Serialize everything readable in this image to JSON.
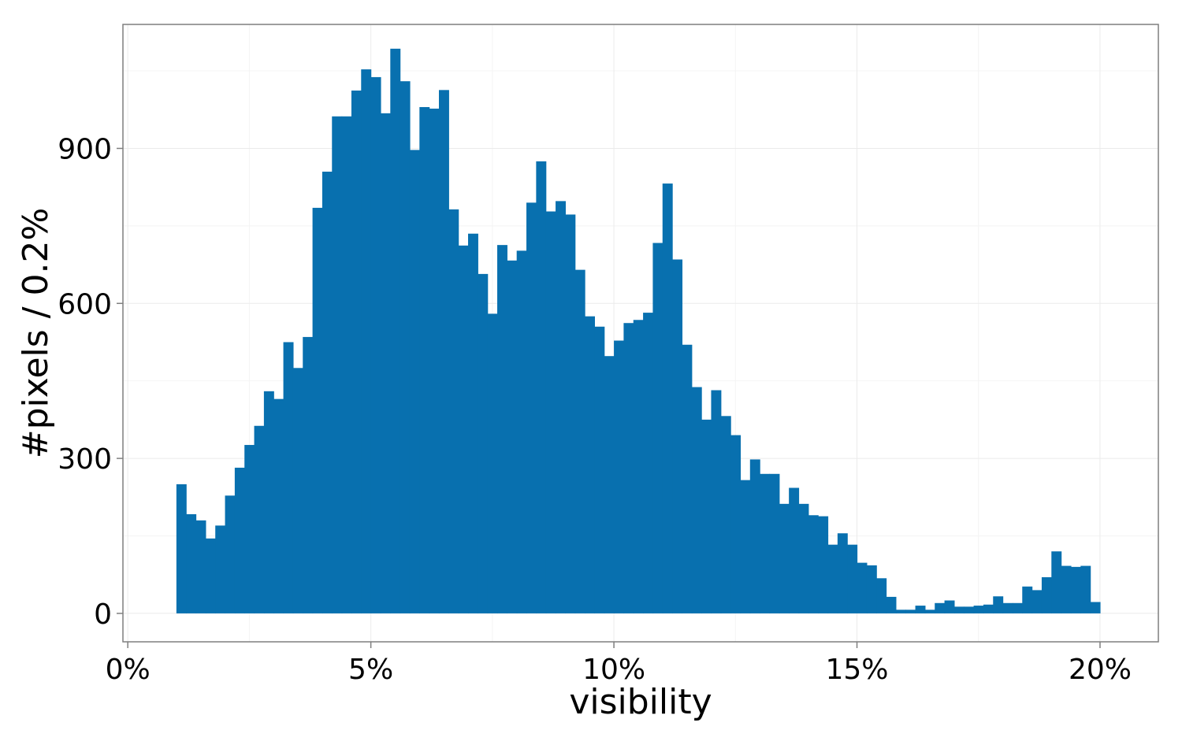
{
  "chart_data": {
    "type": "bar",
    "title": "",
    "xlabel": "visibility",
    "ylabel": "#pixels / 0.2%",
    "bin_width": 0.2,
    "x_unit": "%",
    "xlim": [
      -0.1,
      21.2
    ],
    "ylim": [
      -55,
      1140
    ],
    "grid": true,
    "bar_color": "#0870AF",
    "x_ticks": [
      {
        "value": 0,
        "label": "0%"
      },
      {
        "value": 5,
        "label": "5%"
      },
      {
        "value": 10,
        "label": "10%"
      },
      {
        "value": 15,
        "label": "15%"
      },
      {
        "value": 20,
        "label": "20%"
      }
    ],
    "y_ticks": [
      {
        "value": 0,
        "label": "0"
      },
      {
        "value": 300,
        "label": "300"
      },
      {
        "value": 600,
        "label": "600"
      },
      {
        "value": 900,
        "label": "900"
      }
    ],
    "bins_start": [
      1.0,
      1.2,
      1.4,
      1.6,
      1.8,
      2.0,
      2.2,
      2.4,
      2.6,
      2.8,
      3.0,
      3.2,
      3.4,
      3.6,
      3.8,
      4.0,
      4.2,
      4.4,
      4.6,
      4.8,
      5.0,
      5.2,
      5.4,
      5.6,
      5.8,
      6.0,
      6.2,
      6.4,
      6.6,
      6.8,
      7.0,
      7.2,
      7.4,
      7.6,
      7.8,
      8.0,
      8.2,
      8.4,
      8.6,
      8.8,
      9.0,
      9.2,
      9.4,
      9.6,
      9.8,
      10.0,
      10.2,
      10.4,
      10.6,
      10.8,
      11.0,
      11.2,
      11.4,
      11.6,
      11.8,
      12.0,
      12.2,
      12.4,
      12.6,
      12.8,
      13.0,
      13.2,
      13.4,
      13.6,
      13.8,
      14.0,
      14.2,
      14.4,
      14.6,
      14.8,
      15.0,
      15.2,
      15.4,
      15.6,
      15.8,
      16.0,
      16.2,
      16.4,
      16.6,
      16.8,
      17.0,
      17.2,
      17.4,
      17.6,
      17.8,
      18.0,
      18.2,
      18.4,
      18.6,
      18.8,
      19.0,
      19.2,
      19.4,
      19.6,
      19.8
    ],
    "values": [
      250,
      192,
      180,
      145,
      170,
      228,
      282,
      326,
      363,
      430,
      415,
      525,
      475,
      535,
      785,
      855,
      962,
      962,
      1012,
      1053,
      1038,
      968,
      1093,
      1030,
      897,
      980,
      977,
      1013,
      782,
      712,
      735,
      657,
      580,
      713,
      683,
      702,
      795,
      875,
      778,
      798,
      772,
      665,
      575,
      555,
      498,
      528,
      562,
      568,
      582,
      717,
      832,
      685,
      520,
      438,
      375,
      432,
      382,
      345,
      258,
      298,
      270,
      270,
      212,
      243,
      212,
      190,
      188,
      133,
      155,
      133,
      98,
      93,
      68,
      32,
      7,
      7,
      15,
      7,
      20,
      25,
      13,
      13,
      15,
      17,
      33,
      20,
      20,
      52,
      45,
      70,
      120,
      92,
      90,
      92,
      22
    ]
  }
}
